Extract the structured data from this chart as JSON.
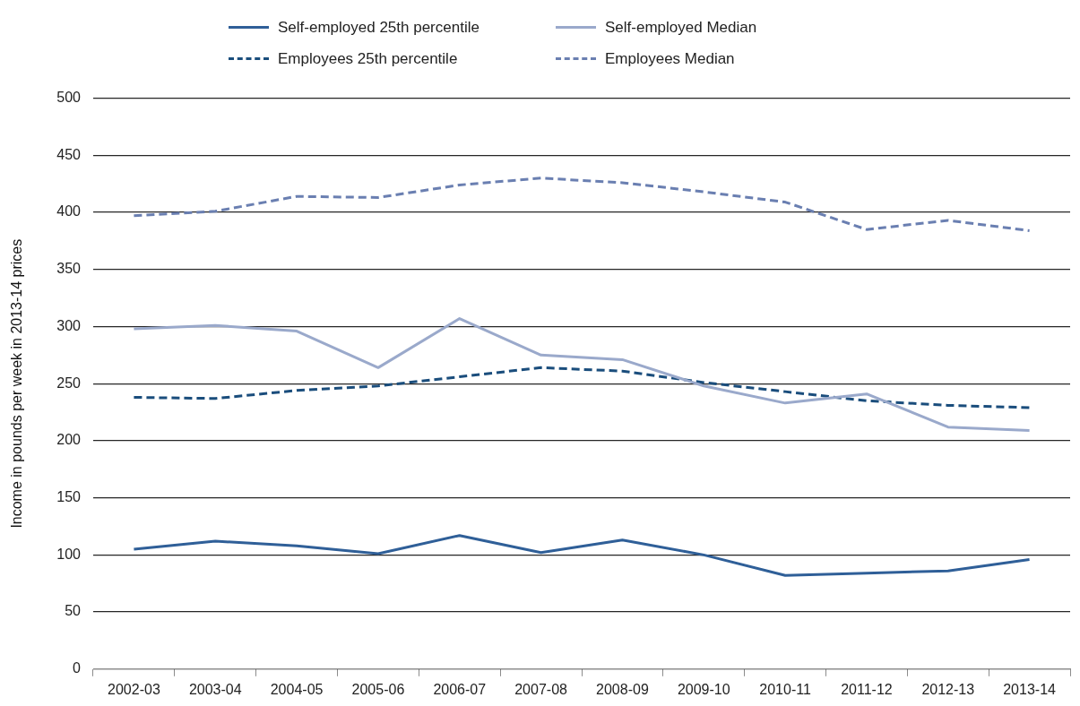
{
  "chart_data": {
    "type": "line",
    "ylabel": "Income in pounds per week in 2013-14 prices",
    "categories": [
      "2002-03",
      "2003-04",
      "2004-05",
      "2005-06",
      "2006-07",
      "2007-08",
      "2008-09",
      "2009-10",
      "2010-11",
      "2011-12",
      "2012-13",
      "2013-14"
    ],
    "series": [
      {
        "name": "Self-employed 25th percentile",
        "color": "#2f5f98",
        "line_style": "solid",
        "values": [
          105,
          112,
          108,
          101,
          117,
          102,
          113,
          100,
          82,
          84,
          86,
          96
        ]
      },
      {
        "name": "Self-employed Median",
        "color": "#9aa9cb",
        "line_style": "solid",
        "values": [
          298,
          301,
          296,
          264,
          307,
          275,
          271,
          248,
          233,
          241,
          212,
          209
        ]
      },
      {
        "name": "Employees 25th percentile",
        "color": "#1a4d7c",
        "line_style": "dashed",
        "values": [
          238,
          237,
          244,
          248,
          256,
          264,
          261,
          251,
          243,
          235,
          231,
          229
        ]
      },
      {
        "name": "Employees Median",
        "color": "#6a7fb1",
        "line_style": "dashed",
        "values": [
          397,
          401,
          414,
          413,
          424,
          430,
          426,
          418,
          409,
          385,
          393,
          384
        ]
      }
    ],
    "ylim": [
      0,
      500
    ],
    "yticks": [
      0,
      50,
      100,
      150,
      200,
      250,
      300,
      350,
      400,
      450,
      500
    ],
    "grid": "y",
    "legend": "top",
    "marker": "none"
  }
}
